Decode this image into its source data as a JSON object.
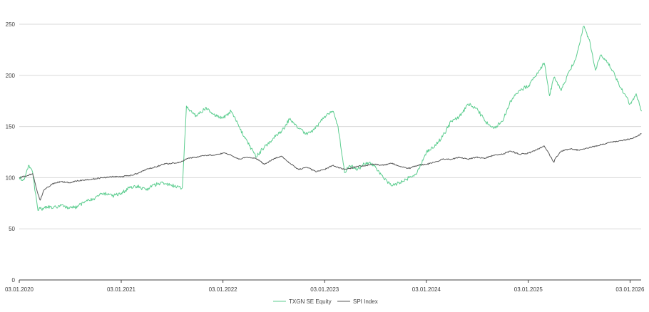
{
  "chart_data": {
    "type": "line",
    "x_ticks": [
      "03.01.2020",
      "03.01.2021",
      "03.01.2022",
      "03.01.2023",
      "03.01.2024",
      "03.01.2025",
      "03.01.2026"
    ],
    "x_range": [
      "2020-01-03",
      "2026-02-13"
    ],
    "ylim": [
      0,
      250
    ],
    "y_ticks": [
      0,
      50,
      100,
      150,
      200,
      250
    ],
    "grid": "horizontal",
    "legend_placement": "bottom",
    "series": [
      {
        "name": "TXGN SE Equity",
        "color": "#5ccd8f",
        "x": [
          "2020-01-03",
          "2020-01-20",
          "2020-02-05",
          "2020-02-20",
          "2020-03-01",
          "2020-03-10",
          "2020-03-18",
          "2020-03-25",
          "2020-04-10",
          "2020-05-01",
          "2020-06-01",
          "2020-07-01",
          "2020-08-01",
          "2020-09-01",
          "2020-10-01",
          "2020-11-01",
          "2020-12-01",
          "2021-01-03",
          "2021-02-01",
          "2021-03-01",
          "2021-04-01",
          "2021-05-01",
          "2021-06-01",
          "2021-07-01",
          "2021-08-10",
          "2021-08-25",
          "2021-09-05",
          "2021-10-01",
          "2021-11-01",
          "2021-12-01",
          "2022-01-03",
          "2022-02-01",
          "2022-03-01",
          "2022-04-01",
          "2022-05-01",
          "2022-06-01",
          "2022-07-01",
          "2022-08-01",
          "2022-09-01",
          "2022-10-01",
          "2022-11-01",
          "2022-12-01",
          "2023-01-03",
          "2023-02-01",
          "2023-02-20",
          "2023-03-15",
          "2023-04-01",
          "2023-05-01",
          "2023-06-01",
          "2023-07-01",
          "2023-08-01",
          "2023-09-01",
          "2023-10-01",
          "2023-11-01",
          "2023-12-01",
          "2024-01-03",
          "2024-02-01",
          "2024-03-01",
          "2024-04-01",
          "2024-05-01",
          "2024-06-01",
          "2024-07-01",
          "2024-08-01",
          "2024-09-01",
          "2024-10-01",
          "2024-11-01",
          "2024-12-01",
          "2025-01-03",
          "2025-02-01",
          "2025-03-01",
          "2025-03-20",
          "2025-04-05",
          "2025-05-01",
          "2025-06-01",
          "2025-06-20",
          "2025-07-05",
          "2025-07-20",
          "2025-08-10",
          "2025-09-01",
          "2025-09-20",
          "2025-10-10",
          "2025-11-01",
          "2025-12-01",
          "2026-01-03",
          "2026-01-25",
          "2026-02-13"
        ],
        "y": [
          100,
          98,
          112,
          105,
          85,
          68,
          70,
          68,
          72,
          70,
          73,
          70,
          72,
          78,
          80,
          85,
          82,
          85,
          90,
          92,
          88,
          93,
          95,
          93,
          90,
          170,
          165,
          160,
          168,
          162,
          158,
          165,
          150,
          135,
          120,
          130,
          138,
          145,
          158,
          148,
          142,
          148,
          160,
          165,
          150,
          105,
          112,
          108,
          115,
          112,
          100,
          92,
          95,
          100,
          105,
          125,
          130,
          140,
          155,
          160,
          172,
          168,
          155,
          148,
          155,
          175,
          185,
          190,
          200,
          212,
          180,
          198,
          185,
          205,
          215,
          230,
          248,
          235,
          205,
          220,
          215,
          205,
          188,
          172,
          182,
          165
        ]
      },
      {
        "name": "SPI Index",
        "color": "#595959",
        "x": [
          "2020-01-03",
          "2020-02-01",
          "2020-02-20",
          "2020-03-10",
          "2020-03-18",
          "2020-04-01",
          "2020-05-01",
          "2020-06-01",
          "2020-07-01",
          "2020-08-01",
          "2020-09-01",
          "2020-10-01",
          "2020-11-01",
          "2020-12-01",
          "2021-01-03",
          "2021-02-01",
          "2021-03-01",
          "2021-04-01",
          "2021-05-01",
          "2021-06-01",
          "2021-07-01",
          "2021-08-01",
          "2021-09-01",
          "2021-10-01",
          "2021-11-01",
          "2021-12-01",
          "2022-01-03",
          "2022-02-01",
          "2022-03-01",
          "2022-04-01",
          "2022-05-01",
          "2022-06-01",
          "2022-07-01",
          "2022-08-01",
          "2022-09-01",
          "2022-10-01",
          "2022-11-01",
          "2022-12-01",
          "2023-01-03",
          "2023-02-01",
          "2023-03-15",
          "2023-04-01",
          "2023-05-01",
          "2023-06-01",
          "2023-07-01",
          "2023-08-01",
          "2023-09-01",
          "2023-10-01",
          "2023-11-01",
          "2023-12-01",
          "2024-01-03",
          "2024-02-01",
          "2024-03-01",
          "2024-04-01",
          "2024-05-01",
          "2024-06-01",
          "2024-07-01",
          "2024-08-01",
          "2024-09-01",
          "2024-10-01",
          "2024-11-01",
          "2024-12-01",
          "2025-01-03",
          "2025-02-01",
          "2025-03-01",
          "2025-04-05",
          "2025-04-10",
          "2025-05-01",
          "2025-06-01",
          "2025-07-01",
          "2025-08-01",
          "2025-09-01",
          "2025-10-01",
          "2025-11-01",
          "2025-12-01",
          "2026-01-03",
          "2026-01-25",
          "2026-02-13"
        ],
        "y": [
          100,
          102,
          104,
          84,
          78,
          88,
          94,
          96,
          95,
          97,
          98,
          99,
          100,
          101,
          101,
          102,
          104,
          108,
          110,
          113,
          114,
          115,
          119,
          120,
          122,
          122,
          124,
          122,
          118,
          120,
          119,
          113,
          118,
          121,
          114,
          108,
          110,
          106,
          108,
          112,
          108,
          109,
          111,
          112,
          113,
          112,
          114,
          111,
          109,
          112,
          113,
          115,
          118,
          118,
          120,
          118,
          120,
          119,
          122,
          123,
          126,
          123,
          124,
          127,
          131,
          115,
          119,
          126,
          128,
          127,
          129,
          131,
          133,
          135,
          136,
          138,
          140,
          143
        ]
      }
    ]
  }
}
